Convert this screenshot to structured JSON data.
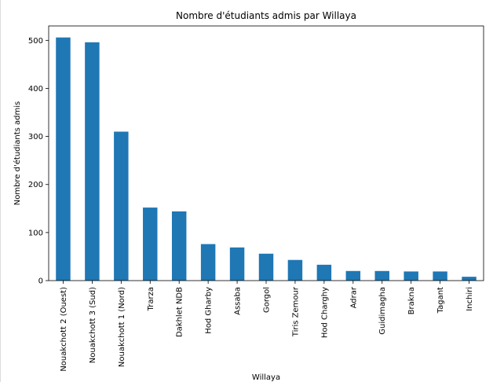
{
  "chart_data": {
    "type": "bar",
    "title": "Nombre d'étudiants admis par Willaya",
    "xlabel": "Willaya",
    "ylabel": "Nombre d'étudiants admis",
    "categories": [
      "Nouakchott 2 (Ouest)",
      "Nouakchott 3 (Sud)",
      "Nouakchott 1 (Nord)",
      "Trarza",
      "Dakhlet NDB",
      "Hod Gharby",
      "Assaba",
      "Gorgol",
      "Tiris Zemour",
      "Hod Charghy",
      "Adrar",
      "Guidimagha",
      "Brakna",
      "Tagant",
      "Inchiri"
    ],
    "values": [
      506,
      496,
      310,
      152,
      144,
      76,
      69,
      56,
      43,
      33,
      20,
      20,
      19,
      19,
      8
    ],
    "ylim": [
      0,
      530
    ],
    "yticks": [
      0,
      100,
      200,
      300,
      400,
      500
    ],
    "grid": false,
    "bar_color": "#1f77b4"
  }
}
